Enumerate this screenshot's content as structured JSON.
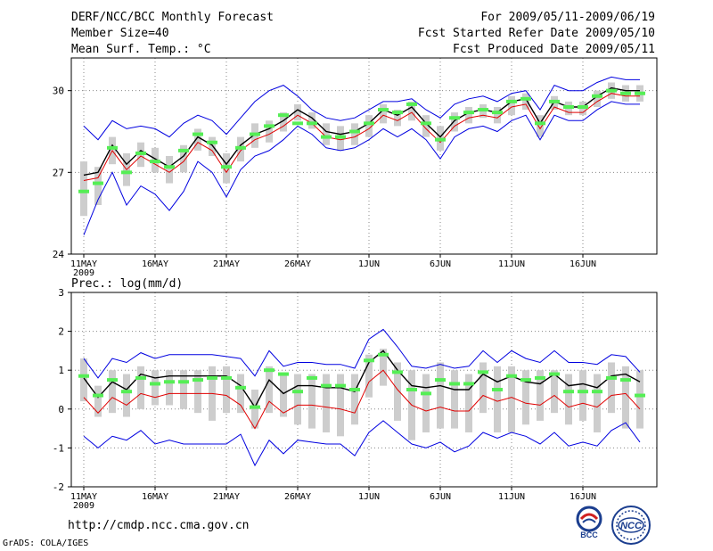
{
  "header": {
    "title": "DERF/NCC/BCC Monthly Forecast",
    "member_size": "Member Size=40",
    "variable": "Mean Surf. Temp.: °C",
    "period": "For 2009/05/11-2009/06/19",
    "refer_date": "Fcst Started Refer Date 2009/05/10",
    "produced_date": "Fcst Produced Date 2009/05/11"
  },
  "footer": {
    "url": "http://cmdp.ncc.cma.gov.cn",
    "credit": "GrADS: COLA/IGES",
    "logo_bcc": "BCC",
    "logo_ncc": "NCC"
  },
  "colors": {
    "mean_line": "#000000",
    "median_line": "#e00000",
    "envelope": "#0000e0",
    "box": "#cdcdcd",
    "marker": "#55ee55",
    "grid": "#888888"
  },
  "chart_data": [
    {
      "type": "line",
      "title": "Mean Surf. Temp.: °C",
      "xlabel": "",
      "ylabel": "",
      "ylim": [
        24,
        31.2
      ],
      "yticks": [
        "24",
        "27",
        "30"
      ],
      "x_tick_labels": [
        "11MAY",
        "16MAY",
        "21MAY",
        "26MAY",
        "1JUN",
        "6JUN",
        "11JUN",
        "16JUN"
      ],
      "x_year_label": "2009",
      "grid": true,
      "days": 40,
      "series": [
        {
          "name": "ensemble mean",
          "values": [
            26.9,
            27.0,
            28.0,
            27.3,
            27.8,
            27.5,
            27.2,
            27.6,
            28.3,
            28.0,
            27.3,
            28.0,
            28.4,
            28.6,
            28.9,
            29.3,
            29.0,
            28.5,
            28.4,
            28.5,
            28.8,
            29.3,
            29.1,
            29.4,
            28.8,
            28.3,
            28.9,
            29.2,
            29.3,
            29.2,
            29.6,
            29.7,
            28.8,
            29.6,
            29.4,
            29.4,
            29.8,
            30.1,
            30.0,
            30.0
          ]
        },
        {
          "name": "median",
          "values": [
            26.7,
            26.8,
            27.8,
            27.1,
            27.6,
            27.3,
            27.0,
            27.4,
            28.1,
            27.8,
            27.0,
            27.8,
            28.2,
            28.4,
            28.7,
            29.1,
            28.8,
            28.3,
            28.2,
            28.3,
            28.6,
            29.1,
            28.9,
            29.2,
            28.6,
            28.1,
            28.7,
            29.0,
            29.1,
            29.0,
            29.4,
            29.5,
            28.6,
            29.4,
            29.2,
            29.2,
            29.6,
            29.9,
            29.8,
            29.8
          ]
        },
        {
          "name": "upper envelope",
          "values": [
            28.7,
            28.2,
            28.9,
            28.6,
            28.7,
            28.6,
            28.3,
            28.8,
            29.1,
            28.9,
            28.4,
            29.0,
            29.6,
            30.0,
            30.2,
            29.8,
            29.3,
            29.0,
            28.9,
            29.0,
            29.3,
            29.6,
            29.6,
            29.7,
            29.3,
            29.0,
            29.5,
            29.7,
            29.8,
            29.6,
            29.9,
            30.0,
            29.3,
            30.2,
            30.0,
            30.0,
            30.3,
            30.5,
            30.4,
            30.4
          ]
        },
        {
          "name": "lower envelope",
          "values": [
            24.7,
            26.0,
            27.0,
            25.8,
            26.5,
            26.2,
            25.6,
            26.3,
            27.4,
            27.0,
            26.1,
            27.1,
            27.6,
            27.8,
            28.2,
            28.7,
            28.4,
            27.9,
            27.8,
            27.9,
            28.2,
            28.6,
            28.3,
            28.6,
            28.2,
            27.5,
            28.3,
            28.6,
            28.7,
            28.5,
            28.9,
            29.1,
            28.2,
            29.1,
            28.9,
            28.9,
            29.3,
            29.6,
            29.5,
            29.5
          ]
        },
        {
          "name": "box upper",
          "values": [
            27.4,
            27.2,
            28.3,
            27.7,
            28.1,
            27.9,
            27.6,
            28.0,
            28.6,
            28.3,
            27.7,
            28.3,
            28.8,
            28.9,
            29.2,
            29.5,
            29.2,
            28.8,
            28.7,
            28.8,
            29.1,
            29.5,
            29.3,
            29.6,
            29.1,
            28.7,
            29.2,
            29.4,
            29.5,
            29.4,
            29.8,
            29.9,
            29.1,
            29.8,
            29.6,
            29.6,
            30.0,
            30.3,
            30.2,
            30.2
          ]
        },
        {
          "name": "box lower",
          "values": [
            25.4,
            25.8,
            27.3,
            26.5,
            27.2,
            27.0,
            26.6,
            27.0,
            27.8,
            27.6,
            26.6,
            27.4,
            27.9,
            28.1,
            28.5,
            28.9,
            28.6,
            28.0,
            27.8,
            28.0,
            28.3,
            28.8,
            28.7,
            28.9,
            28.3,
            27.8,
            28.5,
            28.8,
            29.0,
            28.8,
            29.1,
            29.3,
            28.3,
            29.3,
            29.1,
            29.1,
            29.4,
            29.7,
            29.6,
            29.6
          ]
        },
        {
          "name": "green marker",
          "values": [
            26.3,
            26.6,
            27.9,
            27.0,
            27.7,
            27.4,
            27.2,
            27.8,
            28.4,
            28.1,
            27.2,
            27.9,
            28.4,
            28.7,
            29.1,
            28.8,
            28.8,
            28.3,
            28.3,
            28.5,
            28.8,
            29.3,
            29.2,
            29.5,
            28.8,
            28.2,
            29.0,
            29.2,
            29.3,
            29.2,
            29.6,
            29.7,
            28.8,
            29.6,
            29.4,
            29.4,
            29.8,
            30.0,
            29.9,
            29.9
          ]
        }
      ]
    },
    {
      "type": "line",
      "title": "Prec.: log(mm/d)",
      "xlabel": "",
      "ylabel": "",
      "ylim": [
        -2,
        3
      ],
      "yticks": [
        "-2",
        "-1",
        "0",
        "1",
        "2",
        "3"
      ],
      "x_tick_labels": [
        "11MAY",
        "16MAY",
        "21MAY",
        "26MAY",
        "1JUN",
        "6JUN",
        "11JUN",
        "16JUN"
      ],
      "x_year_label": "2009",
      "grid": true,
      "days": 40,
      "series": [
        {
          "name": "ensemble mean",
          "values": [
            0.8,
            0.3,
            0.7,
            0.5,
            0.9,
            0.8,
            0.85,
            0.85,
            0.85,
            0.85,
            0.85,
            0.6,
            0.05,
            0.75,
            0.4,
            0.6,
            0.6,
            0.55,
            0.55,
            0.45,
            1.2,
            1.5,
            1.0,
            0.6,
            0.55,
            0.6,
            0.5,
            0.5,
            0.9,
            0.7,
            0.85,
            0.7,
            0.65,
            0.9,
            0.6,
            0.65,
            0.55,
            0.85,
            0.9,
            0.7
          ]
        },
        {
          "name": "median",
          "values": [
            0.3,
            -0.1,
            0.3,
            0.1,
            0.4,
            0.3,
            0.4,
            0.4,
            0.4,
            0.4,
            0.35,
            0.1,
            -0.5,
            0.2,
            -0.1,
            0.1,
            0.1,
            0.05,
            0.0,
            -0.1,
            0.7,
            1.0,
            0.5,
            0.1,
            -0.05,
            0.05,
            -0.05,
            -0.05,
            0.35,
            0.2,
            0.3,
            0.15,
            0.1,
            0.35,
            0.05,
            0.15,
            0.05,
            0.35,
            0.4,
            0.0
          ]
        },
        {
          "name": "upper envelope",
          "values": [
            1.3,
            0.8,
            1.3,
            1.2,
            1.45,
            1.3,
            1.4,
            1.4,
            1.4,
            1.4,
            1.35,
            1.3,
            0.85,
            1.5,
            1.1,
            1.2,
            1.2,
            1.15,
            1.15,
            1.05,
            1.8,
            2.05,
            1.6,
            1.1,
            1.05,
            1.15,
            1.05,
            1.1,
            1.5,
            1.2,
            1.5,
            1.3,
            1.2,
            1.5,
            1.2,
            1.2,
            1.15,
            1.4,
            1.35,
            0.95
          ]
        },
        {
          "name": "lower envelope",
          "values": [
            -0.7,
            -1.0,
            -0.7,
            -0.8,
            -0.55,
            -0.9,
            -0.8,
            -0.9,
            -0.9,
            -0.9,
            -0.9,
            -0.65,
            -1.45,
            -0.8,
            -1.15,
            -0.8,
            -0.85,
            -0.9,
            -0.9,
            -1.2,
            -0.6,
            -0.3,
            -0.6,
            -0.9,
            -1.0,
            -0.85,
            -1.1,
            -0.95,
            -0.6,
            -0.75,
            -0.6,
            -0.7,
            -0.9,
            -0.6,
            -0.95,
            -0.85,
            -0.95,
            -0.55,
            -0.35,
            -0.85
          ]
        },
        {
          "name": "box upper",
          "values": [
            1.3,
            0.6,
            1.0,
            0.9,
            1.1,
            1.0,
            1.0,
            1.0,
            1.0,
            1.1,
            1.1,
            0.9,
            0.5,
            1.1,
            0.9,
            0.9,
            0.9,
            0.9,
            0.9,
            0.9,
            1.4,
            1.55,
            1.2,
            1.0,
            0.9,
            1.2,
            1.0,
            0.9,
            1.2,
            1.1,
            1.1,
            1.0,
            1.0,
            1.0,
            0.9,
            1.0,
            0.9,
            1.2,
            1.1,
            1.0
          ]
        },
        {
          "name": "box lower",
          "values": [
            0.2,
            -0.2,
            -0.1,
            -0.2,
            0.0,
            0.1,
            0.1,
            0.0,
            -0.1,
            -0.3,
            -0.1,
            -0.1,
            -0.5,
            -0.1,
            -0.2,
            -0.4,
            -0.5,
            -0.6,
            -0.7,
            -0.4,
            0.3,
            0.6,
            -0.3,
            -0.8,
            -0.6,
            -0.5,
            -0.5,
            -0.6,
            -0.1,
            -0.6,
            -0.6,
            -0.4,
            -0.3,
            -0.1,
            -0.4,
            -0.3,
            -0.6,
            -0.1,
            -0.5,
            -0.5
          ]
        },
        {
          "name": "green marker",
          "values": [
            0.85,
            0.35,
            0.75,
            0.45,
            0.8,
            0.65,
            0.7,
            0.7,
            0.75,
            0.8,
            0.8,
            0.55,
            0.05,
            1.0,
            0.9,
            0.45,
            0.8,
            0.6,
            0.6,
            0.5,
            1.25,
            1.4,
            0.95,
            0.5,
            0.4,
            0.75,
            0.65,
            0.65,
            0.95,
            0.5,
            0.85,
            0.75,
            0.8,
            0.9,
            0.45,
            0.45,
            0.45,
            0.8,
            0.75,
            0.35
          ]
        }
      ]
    }
  ]
}
